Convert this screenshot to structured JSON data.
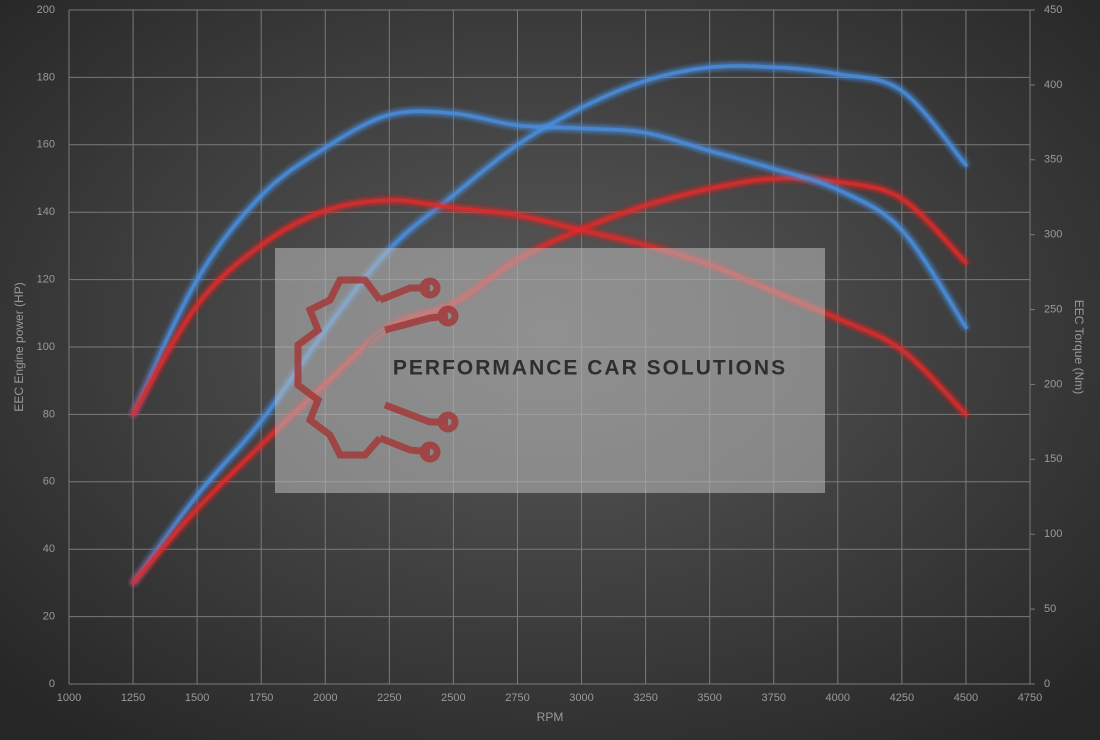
{
  "chart_data": {
    "type": "line",
    "x_label": "RPM",
    "y_label": "EEC Engine power (HP)",
    "y2_label": "EEC Torque (Nm)",
    "watermark": "PERFORMANCE CAR SOLUTIONS",
    "x": [
      1250,
      1500,
      1750,
      2000,
      2250,
      2500,
      2750,
      3000,
      3250,
      3500,
      3750,
      4000,
      4250,
      4500
    ],
    "series": [
      {
        "color": "#4a8fe0",
        "values": [
          30,
          56,
          78,
          105,
          129,
          145,
          160,
          171,
          179,
          183,
          183,
          181,
          176,
          154
        ]
      },
      {
        "color": "#e02a2a",
        "values": [
          30,
          52,
          71,
          89,
          106,
          113,
          126,
          135,
          142,
          147,
          150,
          149,
          144,
          125
        ]
      },
      {
        "color": "#4a8fe0",
        "axis": "y2",
        "values": [
          180,
          270,
          326,
          358,
          380,
          381,
          373,
          371,
          368,
          356,
          344,
          330,
          303,
          238
        ]
      },
      {
        "color": "#e02a2a",
        "axis": "y2",
        "values": [
          180,
          253,
          293,
          316,
          323,
          318,
          313,
          303,
          293,
          280,
          262,
          244,
          223,
          180
        ]
      }
    ],
    "xlim": [
      1000,
      4750
    ],
    "xticks": [
      1000,
      1250,
      1500,
      1750,
      2000,
      2250,
      2500,
      2750,
      3000,
      3250,
      3500,
      3750,
      4000,
      4250,
      4500,
      4750
    ],
    "ylim": [
      0,
      200
    ],
    "yticks": [
      0,
      20,
      40,
      60,
      80,
      100,
      120,
      140,
      160,
      180,
      200
    ],
    "y2lim": [
      0,
      450
    ],
    "y2ticks": [
      0,
      50,
      100,
      150,
      200,
      250,
      300,
      350,
      400,
      450
    ],
    "grid": true
  }
}
